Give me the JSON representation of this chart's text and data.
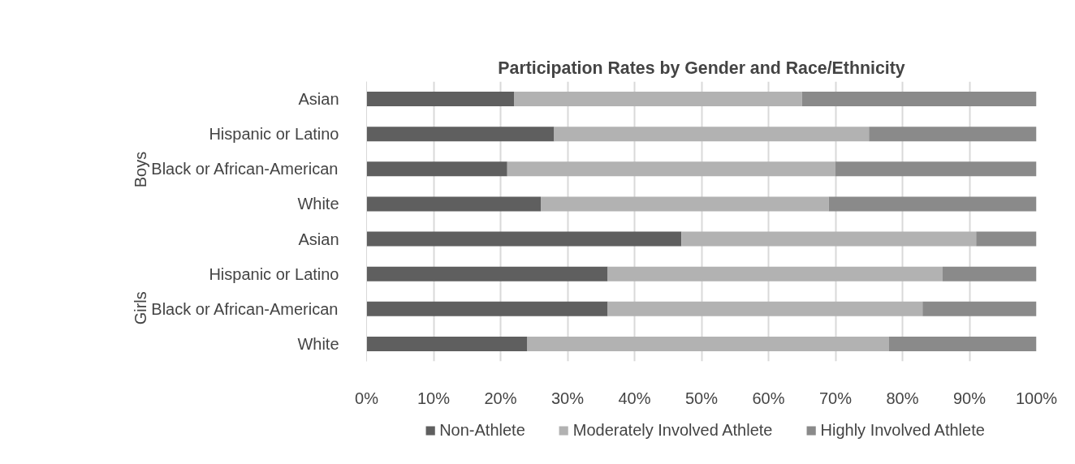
{
  "chart_data": {
    "type": "bar",
    "orientation": "horizontal",
    "stacked": true,
    "title": "Participation Rates by Gender and Race/Ethnicity",
    "categories": [
      "Asian",
      "Hispanic or Latino",
      "Black or African-American",
      "White",
      "Asian",
      "Hispanic or Latino",
      "Black or African-American",
      "White"
    ],
    "series": [
      {
        "name": "Non-Athlete",
        "color": "#5f5f5f",
        "values": [
          22,
          28,
          21,
          26,
          47,
          36,
          36,
          24
        ]
      },
      {
        "name": "Moderately Involved Athlete",
        "color": "#b2b2b2",
        "values": [
          43,
          47,
          49,
          43,
          44,
          50,
          47,
          54
        ]
      },
      {
        "name": "Highly Involved Athlete",
        "color": "#8a8a8a",
        "values": [
          35,
          25,
          30,
          31,
          9,
          14,
          17,
          22
        ]
      }
    ],
    "xlim": [
      0,
      100
    ],
    "xticks": [
      {
        "value": 0,
        "label": "0%"
      },
      {
        "value": 10,
        "label": "10%"
      },
      {
        "value": 20,
        "label": "20%"
      },
      {
        "value": 30,
        "label": "30%"
      },
      {
        "value": 40,
        "label": "40%"
      },
      {
        "value": 50,
        "label": "50%"
      },
      {
        "value": 60,
        "label": "60%"
      },
      {
        "value": 70,
        "label": "70%"
      },
      {
        "value": 80,
        "label": "80%"
      },
      {
        "value": 90,
        "label": "90%"
      },
      {
        "value": 100,
        "label": "100%"
      }
    ],
    "annotations": [
      "Boys",
      "Girls"
    ],
    "grid": "x",
    "legend": "bottom"
  }
}
